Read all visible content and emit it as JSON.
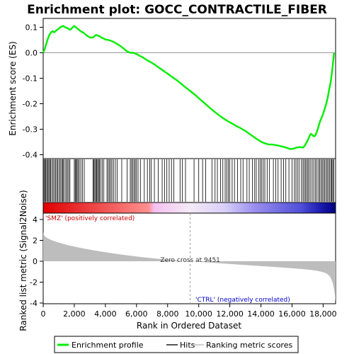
{
  "chart_data": {
    "type": "line",
    "title": "Enrichment plot: GOCC_CONTRACTILE_FIBER",
    "xlabel": "Rank in Ordered Dataset",
    "ylabel_top": "Enrichment score (ES)",
    "ylabel_bottom": "Ranked list metric (Signal2Noise)",
    "xlim": [
      0,
      18800
    ],
    "x_ticks": [
      0,
      2000,
      4000,
      6000,
      8000,
      10000,
      12000,
      14000,
      16000,
      18000
    ],
    "x_tick_labels": [
      "0",
      "2,000",
      "4,000",
      "6,000",
      "8,000",
      "10,000",
      "12,000",
      "14,000",
      "16,000",
      "18,000"
    ],
    "es_ylim": [
      -0.4,
      0.12
    ],
    "es_ticks": [
      0.1,
      0.0,
      -0.1,
      -0.2,
      -0.3,
      -0.4
    ],
    "es_tick_labels": [
      "0.1",
      "0.0",
      "-0.1",
      "-0.2",
      "-0.3",
      "-0.4"
    ],
    "metric_ylim": [
      -4,
      4
    ],
    "metric_ticks": [
      4,
      2,
      0,
      -2,
      -4
    ],
    "metric_tick_labels": [
      "4",
      "2",
      "0",
      "-2",
      "-4"
    ],
    "zero_cross_rank": 9451,
    "zero_cross_label": "Zero cross at 9451",
    "pos_label": "'SMZ' (positively correlated)",
    "neg_label": "'CTRL' (negatively correlated)",
    "legend": [
      "Enrichment profile",
      "Hits",
      "Ranking metric scores"
    ],
    "colors": {
      "profile": "#00ee00",
      "hits": "#000000",
      "metric": "#bdbdbd",
      "pos_text": "#cc0000",
      "neg_text": "#0000cc"
    },
    "series": [
      {
        "name": "Enrichment profile",
        "x": [
          0,
          100,
          200,
          300,
          400,
          500,
          600,
          700,
          800,
          900,
          1000,
          1100,
          1200,
          1300,
          1400,
          1500,
          1600,
          1700,
          1800,
          1900,
          2000,
          2100,
          2200,
          2300,
          2400,
          2600,
          2800,
          3000,
          3200,
          3400,
          3600,
          3800,
          4000,
          4200,
          4400,
          4600,
          4800,
          5000,
          5200,
          5400,
          5600,
          5800,
          6000,
          6200,
          6400,
          6600,
          6800,
          7000,
          7200,
          7400,
          7600,
          7800,
          8000,
          8200,
          8400,
          8600,
          8800,
          9000,
          9200,
          9451,
          9700,
          10000,
          10300,
          10600,
          10900,
          11200,
          11500,
          11800,
          12100,
          12400,
          12700,
          13000,
          13300,
          13600,
          13900,
          14100,
          14300,
          14500,
          14700,
          14900,
          15100,
          15300,
          15500,
          15700,
          15900,
          16100,
          16300,
          16500,
          16700,
          16800,
          16900,
          17000,
          17100,
          17200,
          17300,
          17400,
          17500,
          17600,
          17700,
          17800,
          17900,
          18000,
          18100,
          18200,
          18300,
          18400,
          18500,
          18550,
          18600,
          18650,
          18700
        ],
        "values": [
          0.0,
          0.015,
          0.035,
          0.055,
          0.07,
          0.08,
          0.085,
          0.08,
          0.085,
          0.09,
          0.095,
          0.1,
          0.103,
          0.105,
          0.1,
          0.098,
          0.095,
          0.09,
          0.093,
          0.1,
          0.105,
          0.1,
          0.095,
          0.09,
          0.085,
          0.078,
          0.068,
          0.06,
          0.06,
          0.07,
          0.065,
          0.058,
          0.052,
          0.05,
          0.046,
          0.04,
          0.033,
          0.025,
          0.015,
          0.005,
          0.0,
          0.0,
          -0.005,
          -0.012,
          -0.018,
          -0.026,
          -0.033,
          -0.04,
          -0.048,
          -0.057,
          -0.065,
          -0.074,
          -0.082,
          -0.091,
          -0.1,
          -0.108,
          -0.118,
          -0.128,
          -0.138,
          -0.15,
          -0.162,
          -0.178,
          -0.194,
          -0.21,
          -0.226,
          -0.24,
          -0.254,
          -0.266,
          -0.276,
          -0.287,
          -0.296,
          -0.307,
          -0.32,
          -0.333,
          -0.345,
          -0.352,
          -0.356,
          -0.36,
          -0.36,
          -0.362,
          -0.364,
          -0.367,
          -0.37,
          -0.374,
          -0.378,
          -0.376,
          -0.372,
          -0.37,
          -0.372,
          -0.366,
          -0.355,
          -0.345,
          -0.33,
          -0.318,
          -0.322,
          -0.328,
          -0.325,
          -0.31,
          -0.29,
          -0.27,
          -0.255,
          -0.24,
          -0.22,
          -0.2,
          -0.175,
          -0.14,
          -0.11,
          -0.085,
          -0.06,
          -0.03,
          0.0
        ]
      }
    ],
    "hits": [
      50,
      110,
      170,
      230,
      290,
      360,
      420,
      480,
      560,
      640,
      720,
      800,
      870,
      940,
      1020,
      1100,
      1180,
      1250,
      1300,
      1400,
      1480,
      1560,
      1640,
      1720,
      2000,
      2060,
      2120,
      2180,
      2240,
      2320,
      2420,
      2520,
      2640,
      3200,
      3260,
      3320,
      3380,
      3440,
      3500,
      3560,
      3620,
      3700,
      3800,
      3900,
      4100,
      4180,
      4260,
      4340,
      4420,
      4520,
      4640,
      4760,
      5050,
      5400,
      5600,
      5680,
      5760,
      5840,
      5920,
      6000,
      6100,
      6250,
      6500,
      6700,
      6850,
      6950,
      7150,
      7400,
      7650,
      7800,
      7950,
      8100,
      8250,
      8400,
      8800,
      8950,
      9150,
      9700,
      10000,
      10250,
      10450,
      10850,
      11050,
      11200,
      11400,
      11550,
      11700,
      11800,
      11900,
      12000,
      12150,
      12300,
      12500,
      12700,
      12850,
      13100,
      13250,
      13450,
      13600,
      13700,
      13850,
      13950,
      14050,
      14150,
      14250,
      14400,
      14550,
      14800,
      14950,
      15100,
      15300,
      15450,
      15600,
      15800,
      16000,
      16150,
      16250,
      16350,
      16450,
      16600,
      16700,
      16780,
      16860,
      16940,
      17020,
      17100,
      17200,
      17300,
      17400,
      17500,
      17600,
      17700,
      17780,
      17860,
      17940,
      18020,
      18100,
      18180,
      18260,
      18340,
      18420,
      18500,
      18560,
      18620,
      18680
    ]
  }
}
